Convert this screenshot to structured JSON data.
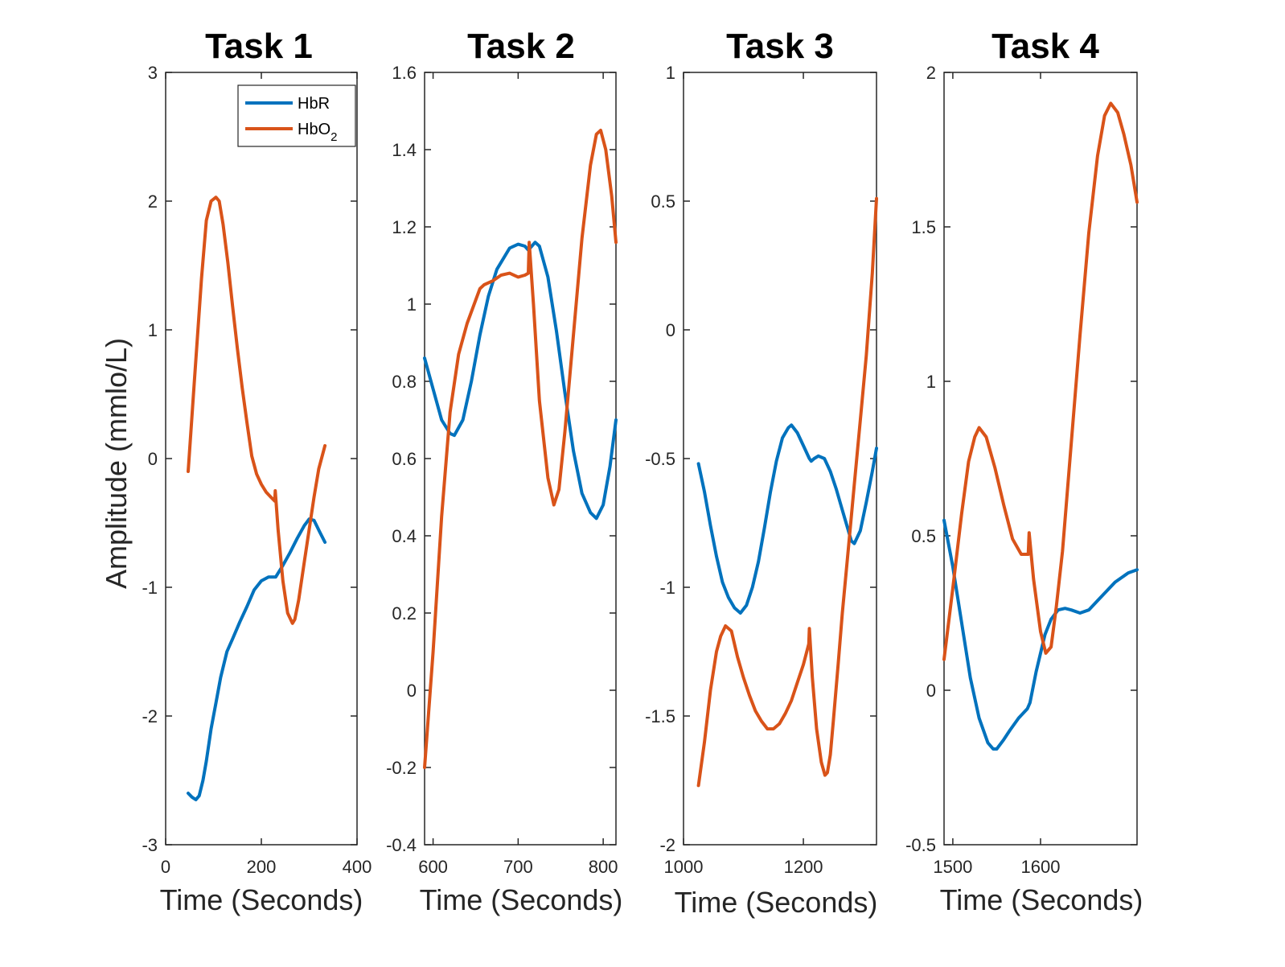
{
  "figure": {
    "ylabel": "Amplitude (mmlo/L)"
  },
  "legend": {
    "entries": [
      {
        "name": "HbR",
        "label_main": "HbR",
        "label_sub": "",
        "color": "#0072BD"
      },
      {
        "name": "HbO2",
        "label_main": "HbO",
        "label_sub": "2",
        "color": "#D95319"
      }
    ]
  },
  "chart_data": [
    {
      "type": "line",
      "title": "Task 1",
      "xlabel": "Time (Seconds)",
      "ylabel": "Amplitude (mmlo/L)",
      "xlim": [
        0,
        400
      ],
      "ylim": [
        -3,
        3
      ],
      "xticks": [
        0,
        200,
        400
      ],
      "xtick_labels": [
        "0",
        "200",
        "400"
      ],
      "yticks": [
        -3,
        -2,
        -1,
        0,
        1,
        2,
        3
      ],
      "ytick_labels": [
        "-3",
        "-2",
        "-1",
        "0",
        "1",
        "2",
        "3"
      ],
      "series": [
        {
          "name": "HbR",
          "color": "#0072BD",
          "x": [
            47,
            55,
            63,
            70,
            78,
            85,
            95,
            105,
            115,
            128,
            140,
            155,
            170,
            185,
            200,
            215,
            230,
            245,
            260,
            275,
            290,
            300,
            310,
            322,
            333
          ],
          "y": [
            -2.6,
            -2.63,
            -2.65,
            -2.62,
            -2.5,
            -2.35,
            -2.1,
            -1.9,
            -1.7,
            -1.5,
            -1.4,
            -1.27,
            -1.15,
            -1.02,
            -0.95,
            -0.92,
            -0.92,
            -0.83,
            -0.73,
            -0.62,
            -0.52,
            -0.47,
            -0.48,
            -0.57,
            -0.65
          ]
        },
        {
          "name": "HbO2",
          "color": "#D95319",
          "x": [
            47,
            60,
            75,
            85,
            95,
            105,
            112,
            120,
            130,
            140,
            150,
            160,
            170,
            180,
            190,
            200,
            210,
            220,
            228,
            229,
            235,
            245,
            255,
            265,
            270,
            278,
            290,
            300,
            310,
            320,
            333
          ],
          "y": [
            -0.1,
            0.6,
            1.4,
            1.85,
            2.0,
            2.03,
            2.0,
            1.82,
            1.52,
            1.18,
            0.85,
            0.55,
            0.28,
            0.02,
            -0.12,
            -0.2,
            -0.26,
            -0.3,
            -0.33,
            -0.25,
            -0.55,
            -0.95,
            -1.2,
            -1.28,
            -1.25,
            -1.1,
            -0.8,
            -0.55,
            -0.3,
            -0.08,
            0.1
          ]
        }
      ]
    },
    {
      "type": "line",
      "title": "Task 2",
      "xlabel": "Time (Seconds)",
      "ylabel": "",
      "xlim": [
        590,
        815
      ],
      "ylim": [
        -0.4,
        1.6
      ],
      "xticks": [
        600,
        700,
        800
      ],
      "xtick_labels": [
        "600",
        "700",
        "800"
      ],
      "yticks": [
        -0.4,
        -0.2,
        0,
        0.2,
        0.4,
        0.6,
        0.8,
        1,
        1.2,
        1.4,
        1.6
      ],
      "ytick_labels": [
        "-0.4",
        "-0.2",
        "0",
        "0.2",
        "0.4",
        "0.6",
        "0.8",
        "1",
        "1.2",
        "1.4",
        "1.6"
      ],
      "series": [
        {
          "name": "HbR",
          "color": "#0072BD",
          "x": [
            590,
            600,
            610,
            620,
            625,
            635,
            645,
            655,
            665,
            675,
            690,
            700,
            708,
            712,
            716,
            720,
            725,
            735,
            745,
            755,
            765,
            775,
            785,
            792,
            800,
            808,
            815
          ],
          "y": [
            0.86,
            0.78,
            0.7,
            0.665,
            0.66,
            0.7,
            0.8,
            0.92,
            1.02,
            1.09,
            1.145,
            1.155,
            1.15,
            1.14,
            1.15,
            1.16,
            1.15,
            1.07,
            0.93,
            0.77,
            0.62,
            0.51,
            0.46,
            0.445,
            0.48,
            0.58,
            0.7
          ]
        },
        {
          "name": "HbO2",
          "color": "#D95319",
          "x": [
            590,
            600,
            610,
            620,
            630,
            640,
            650,
            655,
            660,
            670,
            680,
            690,
            700,
            708,
            712,
            713,
            718,
            725,
            735,
            742,
            748,
            755,
            765,
            775,
            785,
            792,
            797,
            803,
            810,
            815
          ],
          "y": [
            -0.2,
            0.1,
            0.45,
            0.72,
            0.87,
            0.95,
            1.01,
            1.04,
            1.05,
            1.06,
            1.075,
            1.08,
            1.07,
            1.075,
            1.08,
            1.16,
            1.0,
            0.75,
            0.55,
            0.48,
            0.52,
            0.67,
            0.92,
            1.17,
            1.36,
            1.44,
            1.45,
            1.4,
            1.28,
            1.16
          ]
        }
      ]
    },
    {
      "type": "line",
      "title": "Task 3",
      "xlabel": "Time (Seconds)",
      "ylabel": "",
      "xlim": [
        1000,
        1322
      ],
      "ylim": [
        -2,
        1
      ],
      "xticks": [
        1000,
        1200
      ],
      "xtick_labels": [
        "1000",
        "1200"
      ],
      "yticks": [
        -2,
        -1.5,
        -1,
        -0.5,
        0,
        0.5,
        1
      ],
      "ytick_labels": [
        "-2",
        "-1.5",
        "-1",
        "-0.5",
        "0",
        "0.5",
        "1"
      ],
      "series": [
        {
          "name": "HbR",
          "color": "#0072BD",
          "x": [
            1025,
            1035,
            1045,
            1055,
            1065,
            1075,
            1085,
            1095,
            1105,
            1115,
            1125,
            1135,
            1145,
            1155,
            1165,
            1175,
            1180,
            1190,
            1200,
            1210,
            1213,
            1218,
            1225,
            1235,
            1245,
            1255,
            1265,
            1275,
            1280,
            1285,
            1295,
            1305,
            1315,
            1322
          ],
          "y": [
            -0.52,
            -0.63,
            -0.76,
            -0.88,
            -0.98,
            -1.04,
            -1.08,
            -1.1,
            -1.07,
            -1.0,
            -0.9,
            -0.77,
            -0.63,
            -0.51,
            -0.42,
            -0.38,
            -0.37,
            -0.4,
            -0.45,
            -0.5,
            -0.51,
            -0.5,
            -0.49,
            -0.5,
            -0.55,
            -0.62,
            -0.7,
            -0.78,
            -0.82,
            -0.83,
            -0.78,
            -0.67,
            -0.55,
            -0.46
          ]
        },
        {
          "name": "HbO2",
          "color": "#D95319",
          "x": [
            1025,
            1035,
            1045,
            1055,
            1062,
            1070,
            1080,
            1090,
            1100,
            1110,
            1120,
            1130,
            1140,
            1150,
            1160,
            1170,
            1180,
            1190,
            1200,
            1209,
            1210,
            1215,
            1222,
            1230,
            1236,
            1240,
            1245,
            1250,
            1258,
            1265,
            1275,
            1285,
            1295,
            1305,
            1315,
            1322
          ],
          "y": [
            -1.77,
            -1.6,
            -1.4,
            -1.25,
            -1.19,
            -1.15,
            -1.17,
            -1.27,
            -1.35,
            -1.42,
            -1.48,
            -1.52,
            -1.55,
            -1.55,
            -1.53,
            -1.49,
            -1.44,
            -1.37,
            -1.3,
            -1.22,
            -1.16,
            -1.35,
            -1.55,
            -1.68,
            -1.73,
            -1.72,
            -1.65,
            -1.52,
            -1.3,
            -1.1,
            -0.85,
            -0.6,
            -0.35,
            -0.1,
            0.22,
            0.51
          ]
        }
      ]
    },
    {
      "type": "line",
      "title": "Task 4",
      "xlabel": "Time (Seconds)",
      "ylabel": "",
      "xlim": [
        1490,
        1710
      ],
      "ylim": [
        -0.5,
        2
      ],
      "xticks": [
        1500,
        1600
      ],
      "xtick_labels": [
        "1500",
        "1600"
      ],
      "yticks": [
        -0.5,
        0,
        0.5,
        1,
        1.5,
        2
      ],
      "ytick_labels": [
        "-0.5",
        "0",
        "0.5",
        "1",
        "1.5",
        "2"
      ],
      "series": [
        {
          "name": "HbR",
          "color": "#0072BD",
          "x": [
            1490,
            1500,
            1510,
            1520,
            1530,
            1540,
            1546,
            1550,
            1558,
            1565,
            1575,
            1585,
            1588,
            1595,
            1605,
            1612,
            1620,
            1628,
            1635,
            1645,
            1655,
            1665,
            1675,
            1685,
            1700,
            1710
          ],
          "y": [
            0.55,
            0.4,
            0.22,
            0.04,
            -0.09,
            -0.17,
            -0.19,
            -0.19,
            -0.16,
            -0.13,
            -0.09,
            -0.06,
            -0.04,
            0.06,
            0.18,
            0.23,
            0.26,
            0.265,
            0.26,
            0.25,
            0.26,
            0.29,
            0.32,
            0.35,
            0.38,
            0.39
          ]
        },
        {
          "name": "HbO2",
          "color": "#D95319",
          "x": [
            1490,
            1500,
            1510,
            1518,
            1525,
            1530,
            1538,
            1548,
            1558,
            1568,
            1578,
            1586,
            1587,
            1592,
            1600,
            1606,
            1612,
            1618,
            1625,
            1635,
            1645,
            1655,
            1665,
            1673,
            1680,
            1688,
            1695,
            1703,
            1710
          ],
          "y": [
            0.1,
            0.33,
            0.57,
            0.74,
            0.82,
            0.85,
            0.82,
            0.72,
            0.6,
            0.49,
            0.44,
            0.44,
            0.51,
            0.36,
            0.19,
            0.12,
            0.14,
            0.27,
            0.45,
            0.8,
            1.15,
            1.48,
            1.73,
            1.86,
            1.9,
            1.87,
            1.8,
            1.7,
            1.58
          ]
        }
      ]
    }
  ]
}
